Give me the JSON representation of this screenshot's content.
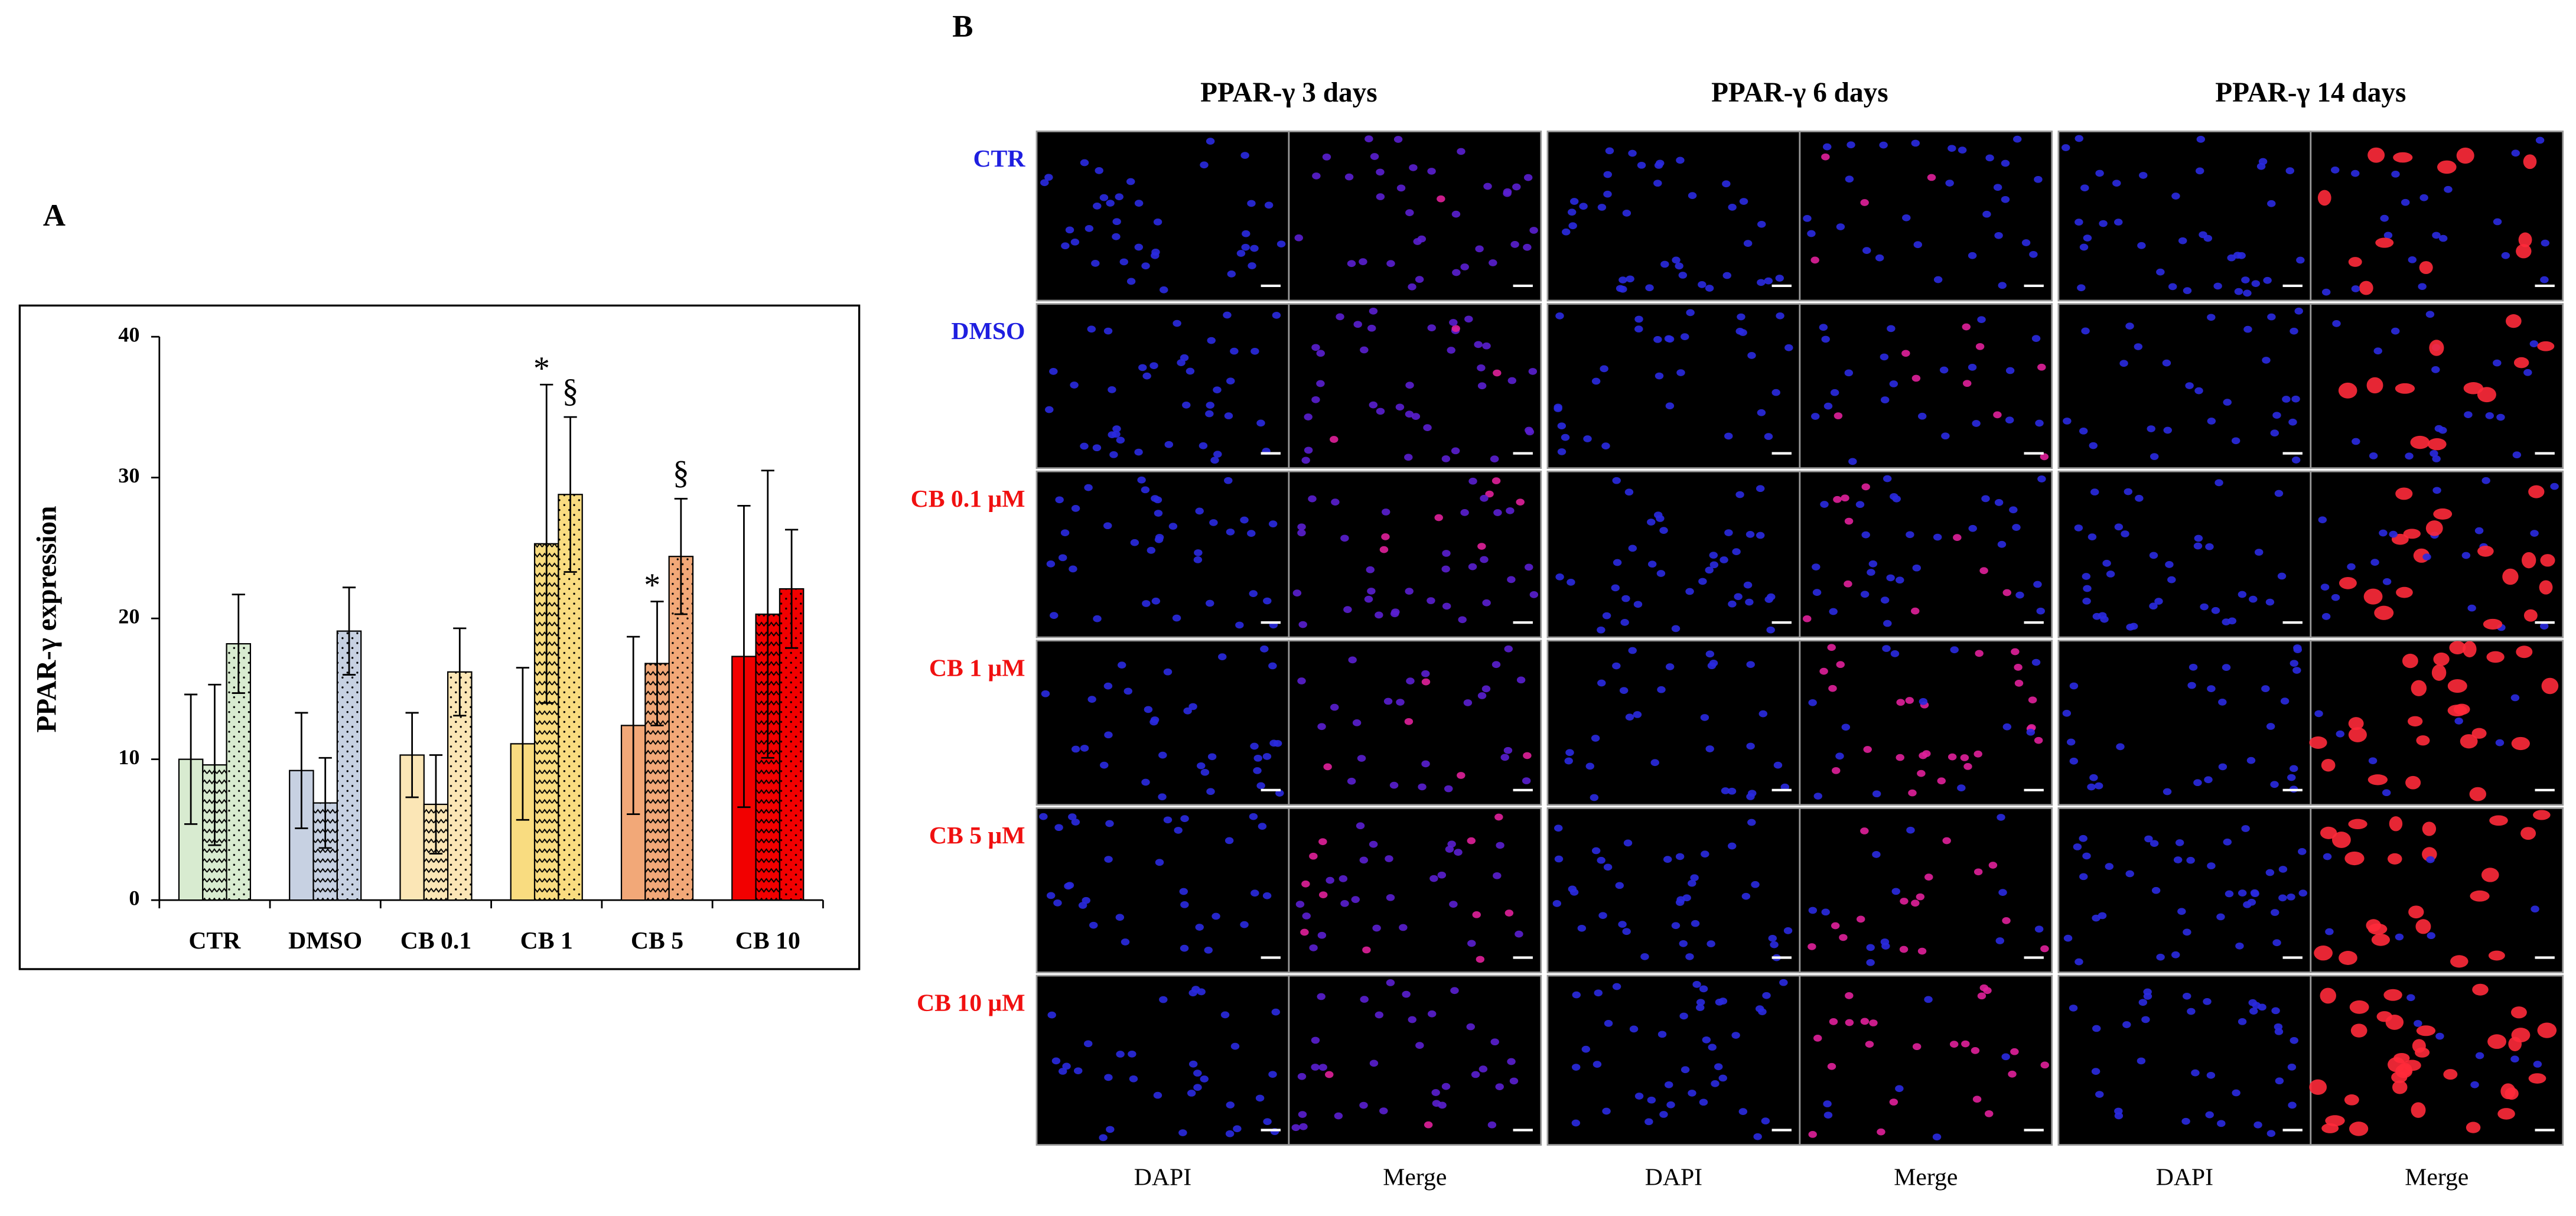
{
  "panel_labels": [
    "A",
    "B"
  ],
  "chart_data": {
    "type": "bar",
    "y_label": "PPAR-γ expression",
    "categories": [
      "CTR",
      "DMSO",
      "CB 0.1",
      "CB 1",
      "CB 5",
      "CB 10"
    ],
    "category_colors": [
      "#d8ebd0",
      "#c7d1e2",
      "#fbe6b6",
      "#f9dc80",
      "#f2a878",
      "#f20000"
    ],
    "series": [
      {
        "pattern": "plain",
        "values": [
          10.0,
          9.2,
          10.3,
          11.1,
          12.4,
          17.3
        ],
        "errors": [
          4.6,
          4.1,
          3.0,
          5.4,
          6.3,
          10.7
        ]
      },
      {
        "pattern": "wave",
        "values": [
          9.6,
          6.9,
          6.8,
          25.3,
          16.8,
          20.3
        ],
        "errors": [
          5.7,
          3.2,
          3.5,
          11.3,
          4.4,
          10.2
        ]
      },
      {
        "pattern": "dots",
        "values": [
          18.2,
          19.1,
          16.2,
          28.8,
          24.4,
          22.1
        ],
        "errors": [
          3.5,
          3.1,
          3.1,
          5.5,
          4.1,
          4.2
        ]
      }
    ],
    "annotations": [
      {
        "text": "*",
        "category": 3,
        "series": 1
      },
      {
        "text": "§",
        "category": 3,
        "series": 2
      },
      {
        "text": "*",
        "category": 4,
        "series": 1
      },
      {
        "text": "§",
        "category": 4,
        "series": 2
      }
    ],
    "ylim": [
      0,
      40
    ],
    "yticks": [
      0,
      10,
      20,
      30,
      40
    ],
    "grid": false
  },
  "panel_b": {
    "columns": [
      {
        "title": "PPAR-γ 3 days",
        "channels": [
          "DAPI",
          "Merge"
        ]
      },
      {
        "title": "PPAR-γ 6 days",
        "channels": [
          "DAPI",
          "Merge"
        ]
      },
      {
        "title": "PPAR-γ 14 days",
        "channels": [
          "DAPI",
          "Merge"
        ]
      }
    ],
    "rows": [
      {
        "label": "CTR",
        "color": "#1f1fe0"
      },
      {
        "label": "DMSO",
        "color": "#1f1fe0"
      },
      {
        "label": "CB 0.1 μM",
        "color": "#f01010"
      },
      {
        "label": "CB 1 μM",
        "color": "#f01010"
      },
      {
        "label": "CB 5 μM",
        "color": "#f01010"
      },
      {
        "label": "CB 10 μM",
        "color": "#f01010"
      }
    ]
  }
}
